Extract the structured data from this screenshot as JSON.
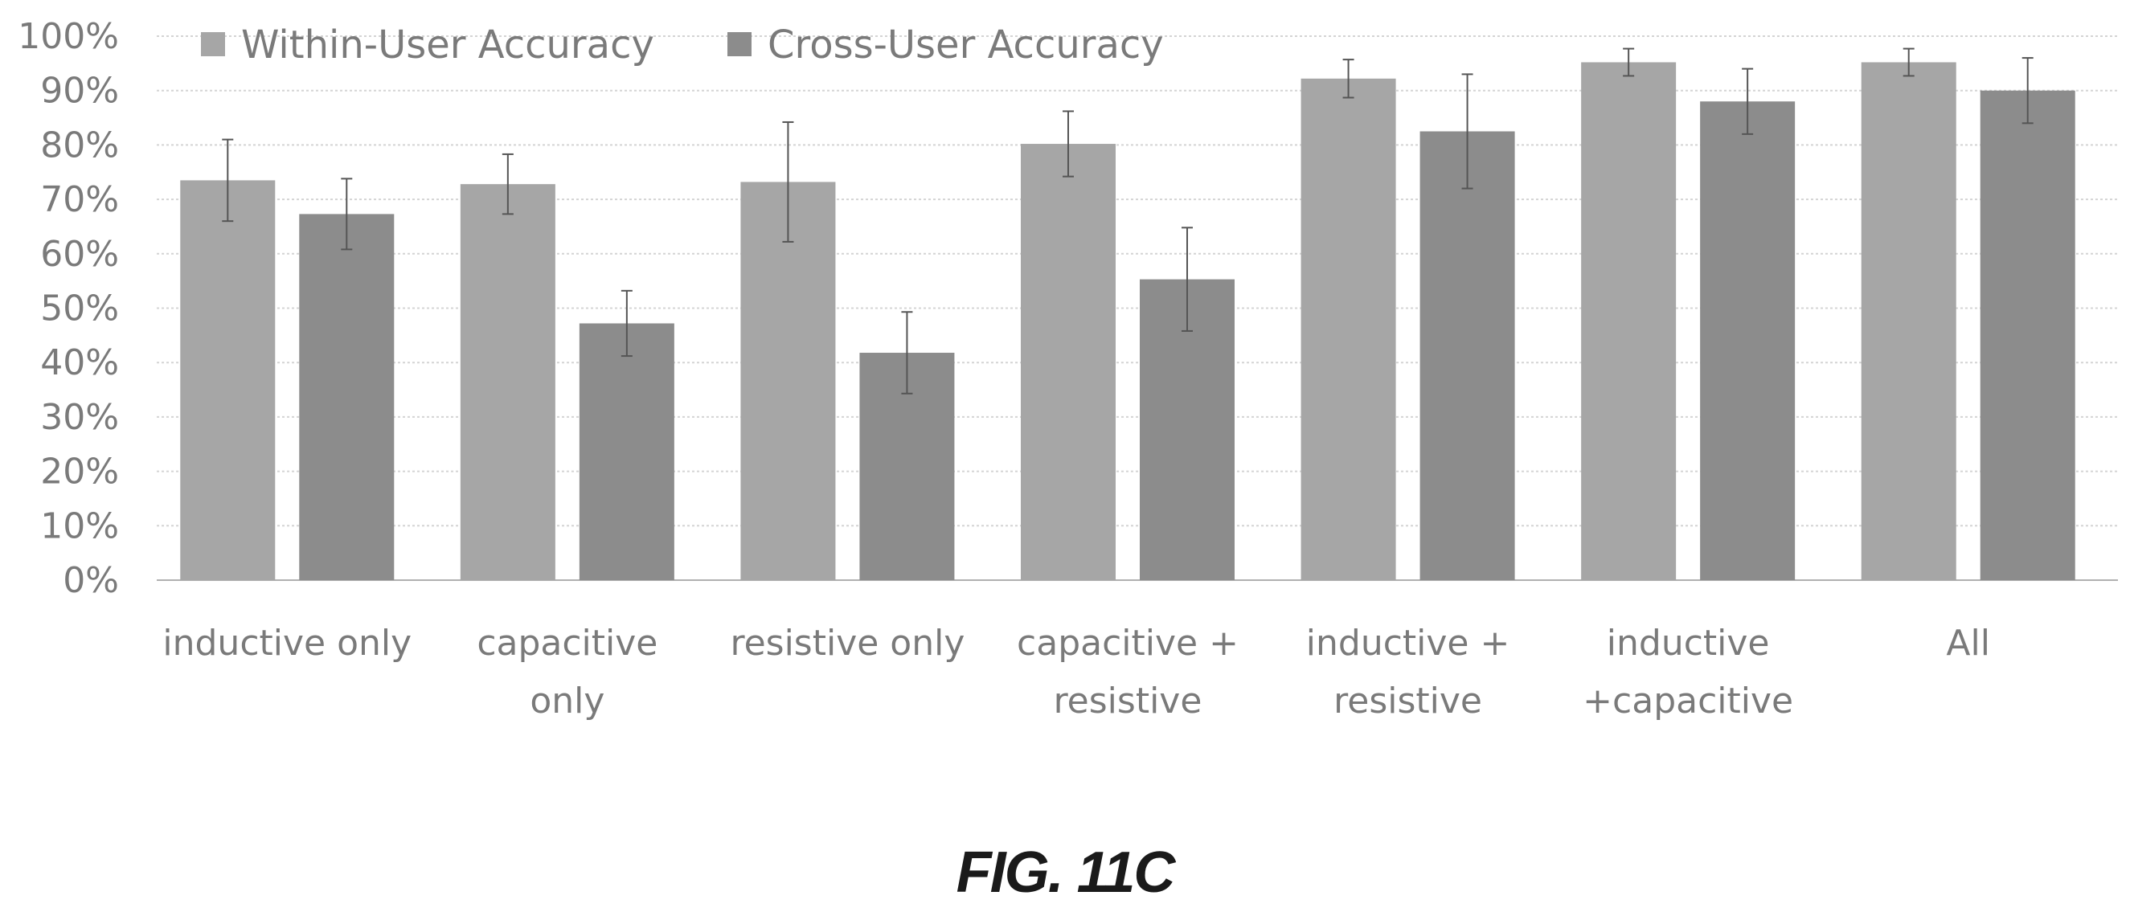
{
  "caption": "FIG. 11C",
  "chart_data": {
    "type": "bar",
    "categories": [
      [
        "inductive only"
      ],
      [
        "capacitive",
        "only"
      ],
      [
        "resistive only"
      ],
      [
        "capacitive +",
        "resistive"
      ],
      [
        "inductive  +",
        "resistive"
      ],
      [
        "inductive",
        "+capacitive"
      ],
      [
        "All"
      ]
    ],
    "series": [
      {
        "name": "Within-User Accuracy",
        "color": "#a6a6a6",
        "values": [
          73.5,
          72.8,
          73.2,
          80.2,
          92.2,
          95.2,
          95.2
        ],
        "error": [
          7.5,
          5.5,
          11.0,
          6.0,
          3.5,
          2.5,
          2.5
        ]
      },
      {
        "name": "Cross-User Accuracy",
        "color": "#8c8c8c",
        "values": [
          67.3,
          47.2,
          41.8,
          55.3,
          82.5,
          88.0,
          90.0
        ],
        "error": [
          6.5,
          6.0,
          7.5,
          9.5,
          10.5,
          6.0,
          6.0
        ]
      }
    ],
    "ylim": [
      0,
      100
    ],
    "yticks": [
      "0%",
      "10%",
      "20%",
      "30%",
      "40%",
      "50%",
      "60%",
      "70%",
      "80%",
      "90%",
      "100%"
    ],
    "grid": true,
    "legend_position": "top-left"
  }
}
